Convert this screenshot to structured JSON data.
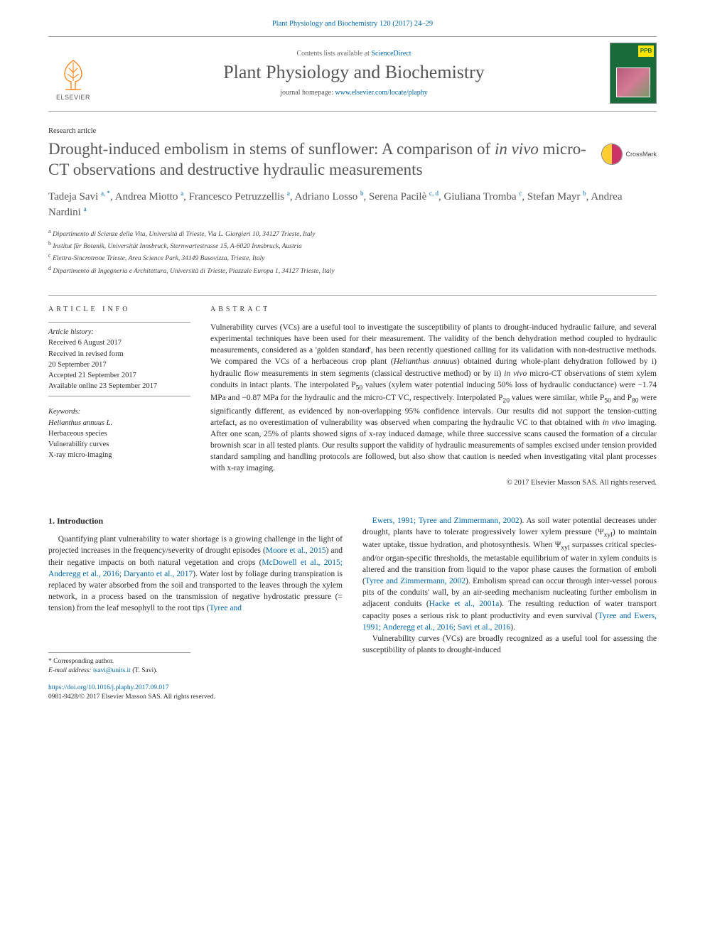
{
  "header_cite": "Plant Physiology and Biochemistry 120 (2017) 24–29",
  "masthead": {
    "contents_prefix": "Contents lists available at ",
    "contents_link": "ScienceDirect",
    "journal_name": "Plant Physiology and Biochemistry",
    "homepage_prefix": "journal homepage: ",
    "homepage_link": "www.elsevier.com/locate/plaphy",
    "elsevier": "ELSEVIER",
    "cover_badge": "PPB"
  },
  "article_type": "Research article",
  "title_line1": "Drought-induced embolism in stems of sunflower: A comparison of ",
  "title_line2_italic": "in vivo",
  "title_line2_rest": " micro-CT observations and destructive hydraulic measurements",
  "crossmark": "CrossMark",
  "authors_html": "Tadeja Savi <sup>a, *</sup>, Andrea Miotto <sup>a</sup>, Francesco Petruzzellis <sup>a</sup>, Adriano Losso <sup>b</sup>, Serena Pacilè <sup>c, d</sup>, Giuliana Tromba <sup>c</sup>, Stefan Mayr <sup>b</sup>, Andrea Nardini <sup>a</sup>",
  "affiliations": {
    "a": "Dipartimento di Scienze della Vita, Università di Trieste, Via L. Giorgieri 10, 34127 Trieste, Italy",
    "b": "Institut für Botanik, Universität Innsbruck, Sternwartestrasse 15, A-6020 Innsbruck, Austria",
    "c": "Elettra-Sincrotrone Trieste, Area Science Park, 34149 Basovizza, Trieste, Italy",
    "d": "Dipartimento di Ingegneria e Architettura, Università di Trieste, Piazzale Europa 1, 34127 Trieste, Italy"
  },
  "article_info_head": "ARTICLE INFO",
  "abstract_head": "ABSTRACT",
  "history": {
    "label": "Article history:",
    "received": "Received 6 August 2017",
    "revised": "Received in revised form",
    "revised_date": "20 September 2017",
    "accepted": "Accepted 21 September 2017",
    "online": "Available online 23 September 2017"
  },
  "keywords": {
    "label": "Keywords:",
    "k1": "Helianthus annuus L.",
    "k2": "Herbaceous species",
    "k3": "Vulnerability curves",
    "k4": "X-ray micro-imaging"
  },
  "abstract": "Vulnerability curves (VCs) are a useful tool to investigate the susceptibility of plants to drought-induced hydraulic failure, and several experimental techniques have been used for their measurement. The validity of the bench dehydration method coupled to hydraulic measurements, considered as a 'golden standard', has been recently questioned calling for its validation with non-destructive methods. We compared the VCs of a herbaceous crop plant (Helianthus annuus) obtained during whole-plant dehydration followed by i) hydraulic flow measurements in stem segments (classical destructive method) or by ii) in vivo micro-CT observations of stem xylem conduits in intact plants. The interpolated P50 values (xylem water potential inducing 50% loss of hydraulic conductance) were −1.74 MPa and −0.87 MPa for the hydraulic and the micro-CT VC, respectively. Interpolated P20 values were similar, while P50 and P80 were significantly different, as evidenced by non-overlapping 95% confidence intervals. Our results did not support the tension-cutting artefact, as no overestimation of vulnerability was observed when comparing the hydraulic VC to that obtained with in vivo imaging. After one scan, 25% of plants showed signs of x-ray induced damage, while three successive scans caused the formation of a circular brownish scar in all tested plants. Our results support the validity of hydraulic measurements of samples excised under tension provided standard sampling and handling protocols are followed, but also show that caution is needed when investigating vital plant processes with x-ray imaging.",
  "copyright": "© 2017 Elsevier Masson SAS. All rights reserved.",
  "section1_head": "1. Introduction",
  "col1_para": "Quantifying plant vulnerability to water shortage is a growing challenge in the light of projected increases in the frequency/severity of drought episodes (Moore et al., 2015) and their negative impacts on both natural vegetation and crops (McDowell et al., 2015; Anderegg et al., 2016; Daryanto et al., 2017). Water lost by foliage during transpiration is replaced by water absorbed from the soil and transported to the leaves through the xylem network, in a process based on the transmission of negative hydrostatic pressure (= tension) from the leaf mesophyll to the root tips (Tyree and",
  "col2_para1": "Ewers, 1991; Tyree and Zimmermann, 2002). As soil water potential decreases under drought, plants have to tolerate progressively lower xylem pressure (Ψxyl) to maintain water uptake, tissue hydration, and photosynthesis. When Ψxyl surpasses critical species- and/or organ-specific thresholds, the metastable equilibrium of water in xylem conduits is altered and the transition from liquid to the vapor phase causes the formation of emboli (Tyree and Zimmermann, 2002). Embolism spread can occur through inter-vessel porous pits of the conduits' wall, by an air-seeding mechanism nucleating further embolism in adjacent conduits (Hacke et al., 2001a). The resulting reduction of water transport capacity poses a serious risk to plant productivity and even survival (Tyree and Ewers, 1991; Anderegg et al., 2016; Savi et al., 2016).",
  "col2_para2": "Vulnerability curves (VCs) are broadly recognized as a useful tool for assessing the susceptibility of plants to drought-induced",
  "footnotes": {
    "corresp": "* Corresponding author.",
    "email_label": "E-mail address: ",
    "email": "tsavi@units.it",
    "email_suffix": " (T. Savi)."
  },
  "doi": {
    "link": "https://doi.org/10.1016/j.plaphy.2017.09.017",
    "issn": "0981-9428/© 2017 Elsevier Masson SAS. All rights reserved."
  },
  "colors": {
    "link": "#0066aa",
    "text": "#2a2a2a",
    "heading": "#555555",
    "rule": "#999999",
    "cover_bg": "#1a6b3a",
    "badge_bg": "#ffe400"
  }
}
